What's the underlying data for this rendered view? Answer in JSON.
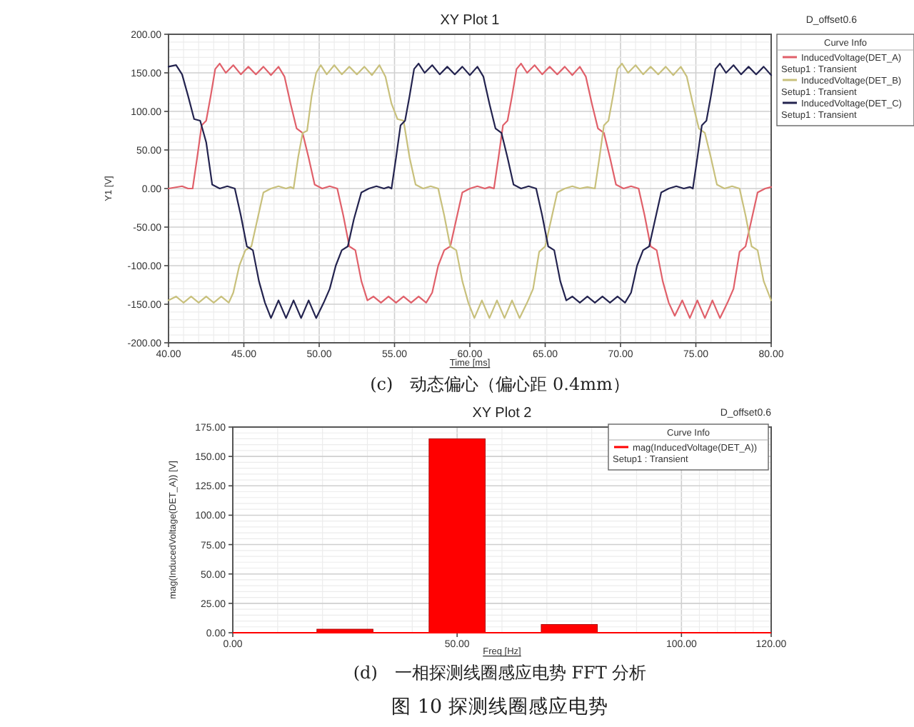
{
  "chart_data": [
    {
      "type": "line",
      "title": "XY Plot 1",
      "xlabel": "Time [ms]",
      "ylabel": "Y1 [V]",
      "legend_title": "Curve Info",
      "annotations": [
        "D_offset0.6",
        "(c)　动态偏心（偏心距 0.4mm）"
      ],
      "xlim": [
        40,
        80
      ],
      "xticks": [
        {
          "value": 40,
          "label": "40.00"
        },
        {
          "value": 45,
          "label": "45.00"
        },
        {
          "value": 50,
          "label": "50.00"
        },
        {
          "value": 55,
          "label": "55.00"
        },
        {
          "value": 60,
          "label": "60.00"
        },
        {
          "value": 65,
          "label": "65.00"
        },
        {
          "value": 70,
          "label": "70.00"
        },
        {
          "value": 75,
          "label": "75.00"
        },
        {
          "value": 80,
          "label": "80.00"
        }
      ],
      "ylim": [
        -200,
        200
      ],
      "yticks": [
        {
          "value": -200,
          "label": "-200.00"
        },
        {
          "value": -150,
          "label": "-150.00"
        },
        {
          "value": -100,
          "label": "-100.00"
        },
        {
          "value": -50,
          "label": "-50.00"
        },
        {
          "value": 0,
          "label": "0.00"
        },
        {
          "value": 50,
          "label": "50.00"
        },
        {
          "value": 100,
          "label": "100.00"
        },
        {
          "value": 150,
          "label": "150.00"
        },
        {
          "value": 200,
          "label": "200.00"
        }
      ],
      "grid": true,
      "legend": "top right",
      "marker": "none",
      "line_style": "solid",
      "series": [
        {
          "name": "InducedVoltage(DET_A)\nSetup1 : Transient",
          "color": "#e0606a",
          "x": [
            40,
            40.9,
            41.3,
            41.6,
            41.9,
            42.2,
            42.5,
            42.8,
            43.1,
            43.4,
            43.8,
            44.3,
            44.8,
            45.3,
            45.8,
            46.3,
            46.8,
            47.3,
            47.7,
            48.1,
            48.5,
            48.9,
            49.3,
            49.7,
            50.2,
            50.7,
            51.2,
            51.6,
            52.0,
            52.4,
            52.8,
            53.2,
            53.6,
            54.1,
            54.6,
            55.1,
            55.6,
            56.1,
            56.6,
            57.1,
            57.5,
            57.9,
            58.3,
            58.7,
            59.1,
            59.5,
            60.0,
            60.5,
            61.0,
            61.3,
            61.6,
            61.9,
            62.2,
            62.5,
            62.8,
            63.1,
            63.4,
            63.8,
            64.3,
            64.8,
            65.3,
            65.8,
            66.3,
            66.8,
            67.3,
            67.7,
            68.1,
            68.5,
            68.9,
            69.3,
            69.7,
            70.2,
            70.7,
            71.2,
            71.6,
            72.0,
            72.4,
            72.8,
            73.2,
            73.6,
            74.1,
            74.6,
            75.1,
            75.6,
            76.1,
            76.6,
            77.1,
            77.5,
            77.9,
            78.3,
            78.7,
            79.1,
            79.6,
            80.0
          ],
          "values": [
            0,
            3,
            0,
            0,
            40,
            82,
            88,
            120,
            155,
            162,
            150,
            160,
            148,
            158,
            148,
            158,
            147,
            158,
            145,
            110,
            78,
            72,
            40,
            5,
            0,
            3,
            0,
            -35,
            -75,
            -80,
            -120,
            -145,
            -140,
            -148,
            -140,
            -148,
            -140,
            -148,
            -140,
            -148,
            -135,
            -100,
            -80,
            -75,
            -40,
            -5,
            0,
            3,
            0,
            2,
            0,
            40,
            82,
            88,
            120,
            155,
            162,
            150,
            160,
            148,
            158,
            148,
            158,
            147,
            158,
            145,
            110,
            78,
            72,
            40,
            5,
            0,
            3,
            0,
            -35,
            -75,
            -80,
            -120,
            -148,
            -165,
            -145,
            -168,
            -145,
            -168,
            -145,
            -168,
            -148,
            -130,
            -82,
            -75,
            -40,
            -5,
            0,
            2
          ]
        },
        {
          "name": "InducedVoltage(DET_B)\nSetup1 : Transient",
          "color": "#c8c07c",
          "x": [
            40.0,
            40.5,
            41.0,
            41.5,
            42.0,
            42.5,
            43.0,
            43.5,
            44.0,
            44.3,
            44.7,
            45.1,
            45.5,
            45.9,
            46.3,
            46.8,
            47.3,
            47.8,
            48.1,
            48.3,
            48.6,
            48.9,
            49.2,
            49.5,
            49.8,
            50.1,
            50.5,
            51.0,
            51.5,
            52.0,
            52.5,
            53.0,
            53.5,
            54.0,
            54.4,
            54.8,
            55.2,
            55.6,
            56.0,
            56.4,
            56.9,
            57.4,
            57.9,
            58.3,
            58.7,
            59.1,
            59.5,
            59.9,
            60.3,
            60.8,
            61.3,
            61.8,
            62.3,
            62.8,
            63.3,
            63.8,
            64.2,
            64.6,
            65.0,
            65.4,
            65.8,
            66.3,
            66.8,
            67.3,
            67.8,
            68.3,
            68.6,
            68.9,
            69.2,
            69.5,
            69.8,
            70.1,
            70.5,
            71.0,
            71.5,
            72.0,
            72.5,
            73.0,
            73.5,
            74.0,
            74.4,
            74.8,
            75.2,
            75.6,
            76.0,
            76.4,
            76.9,
            77.4,
            77.9,
            78.3,
            78.7,
            79.1,
            79.5,
            80.0
          ],
          "values": [
            -145,
            -140,
            -148,
            -140,
            -148,
            -140,
            -148,
            -140,
            -148,
            -135,
            -100,
            -80,
            -75,
            -40,
            -5,
            0,
            3,
            0,
            2,
            0,
            40,
            72,
            75,
            120,
            150,
            160,
            148,
            160,
            148,
            158,
            148,
            158,
            147,
            160,
            145,
            110,
            90,
            88,
            40,
            5,
            0,
            3,
            0,
            -35,
            -75,
            -80,
            -120,
            -148,
            -168,
            -145,
            -168,
            -145,
            -168,
            -145,
            -168,
            -148,
            -130,
            -82,
            -75,
            -40,
            -5,
            0,
            3,
            0,
            2,
            0,
            40,
            82,
            88,
            120,
            155,
            162,
            150,
            160,
            148,
            158,
            148,
            158,
            147,
            158,
            145,
            110,
            78,
            72,
            40,
            5,
            0,
            3,
            0,
            -35,
            -75,
            -80,
            -120,
            -145
          ]
        },
        {
          "name": "InducedVoltage(DET_C)\nSetup1 : Transient",
          "color": "#23234f",
          "x": [
            40.0,
            40.5,
            40.9,
            41.3,
            41.7,
            42.1,
            42.5,
            42.9,
            43.4,
            43.9,
            44.4,
            44.8,
            45.2,
            45.6,
            46.0,
            46.4,
            46.8,
            47.3,
            47.8,
            48.3,
            48.8,
            49.3,
            49.8,
            50.3,
            50.7,
            51.1,
            51.5,
            51.9,
            52.3,
            52.8,
            53.3,
            53.8,
            54.3,
            54.6,
            54.8,
            55.1,
            55.4,
            55.7,
            56.0,
            56.3,
            56.6,
            57.0,
            57.5,
            58.0,
            58.5,
            59.0,
            59.5,
            60.0,
            60.5,
            60.9,
            61.3,
            61.7,
            62.1,
            62.5,
            62.9,
            63.4,
            63.9,
            64.4,
            64.8,
            65.2,
            65.6,
            66.0,
            66.4,
            66.8,
            67.3,
            67.8,
            68.3,
            68.8,
            69.3,
            69.8,
            70.3,
            70.7,
            71.1,
            71.5,
            71.9,
            72.3,
            72.7,
            73.2,
            73.7,
            74.2,
            74.6,
            74.8,
            75.1,
            75.4,
            75.7,
            76.0,
            76.3,
            76.6,
            77.0,
            77.5,
            78.0,
            78.5,
            79.0,
            79.5,
            80.0
          ],
          "values": [
            158,
            160,
            148,
            120,
            90,
            88,
            60,
            5,
            0,
            3,
            0,
            -35,
            -75,
            -80,
            -120,
            -148,
            -168,
            -145,
            -168,
            -145,
            -168,
            -145,
            -168,
            -148,
            -130,
            -100,
            -80,
            -75,
            -40,
            -5,
            0,
            3,
            0,
            2,
            0,
            40,
            82,
            88,
            120,
            155,
            162,
            150,
            160,
            148,
            158,
            148,
            158,
            147,
            158,
            145,
            110,
            78,
            72,
            40,
            5,
            0,
            3,
            0,
            -35,
            -75,
            -80,
            -120,
            -145,
            -140,
            -148,
            -140,
            -148,
            -140,
            -148,
            -140,
            -148,
            -135,
            -100,
            -80,
            -75,
            -40,
            -5,
            0,
            3,
            0,
            2,
            0,
            40,
            82,
            88,
            120,
            155,
            162,
            150,
            160,
            148,
            158,
            148,
            158,
            147
          ]
        }
      ]
    },
    {
      "type": "bar",
      "title": "XY Plot 2",
      "xlabel": "Freq [Hz]",
      "ylabel": "mag(InducedVoltage(DET_A)) [V]",
      "legend_title": "Curve Info",
      "annotations": [
        "D_offset0.6",
        "(d)　一相探测线圈感应电势 FFT 分析",
        "图 10 探测线圈感应电势"
      ],
      "x": [
        25,
        50,
        75
      ],
      "xlim": [
        0,
        120
      ],
      "xticks": [
        {
          "value": 0,
          "label": "0.00"
        },
        {
          "value": 50,
          "label": "50.00"
        },
        {
          "value": 100,
          "label": "100.00"
        },
        {
          "value": 120,
          "label": "120.00"
        }
      ],
      "ylim": [
        0,
        175
      ],
      "yticks": [
        {
          "value": 0,
          "label": "0.00"
        },
        {
          "value": 25,
          "label": "25.00"
        },
        {
          "value": 50,
          "label": "50.00"
        },
        {
          "value": 75,
          "label": "75.00"
        },
        {
          "value": 100,
          "label": "100.00"
        },
        {
          "value": 125,
          "label": "125.00"
        },
        {
          "value": 150,
          "label": "150.00"
        },
        {
          "value": 175,
          "label": "175.00"
        }
      ],
      "grid": true,
      "legend": "top right",
      "series": [
        {
          "name": "mag(InducedVoltage(DET_A))\nSetup1 : Transient",
          "color": "#ff0000",
          "values": [
            3,
            165,
            7
          ]
        }
      ]
    }
  ]
}
